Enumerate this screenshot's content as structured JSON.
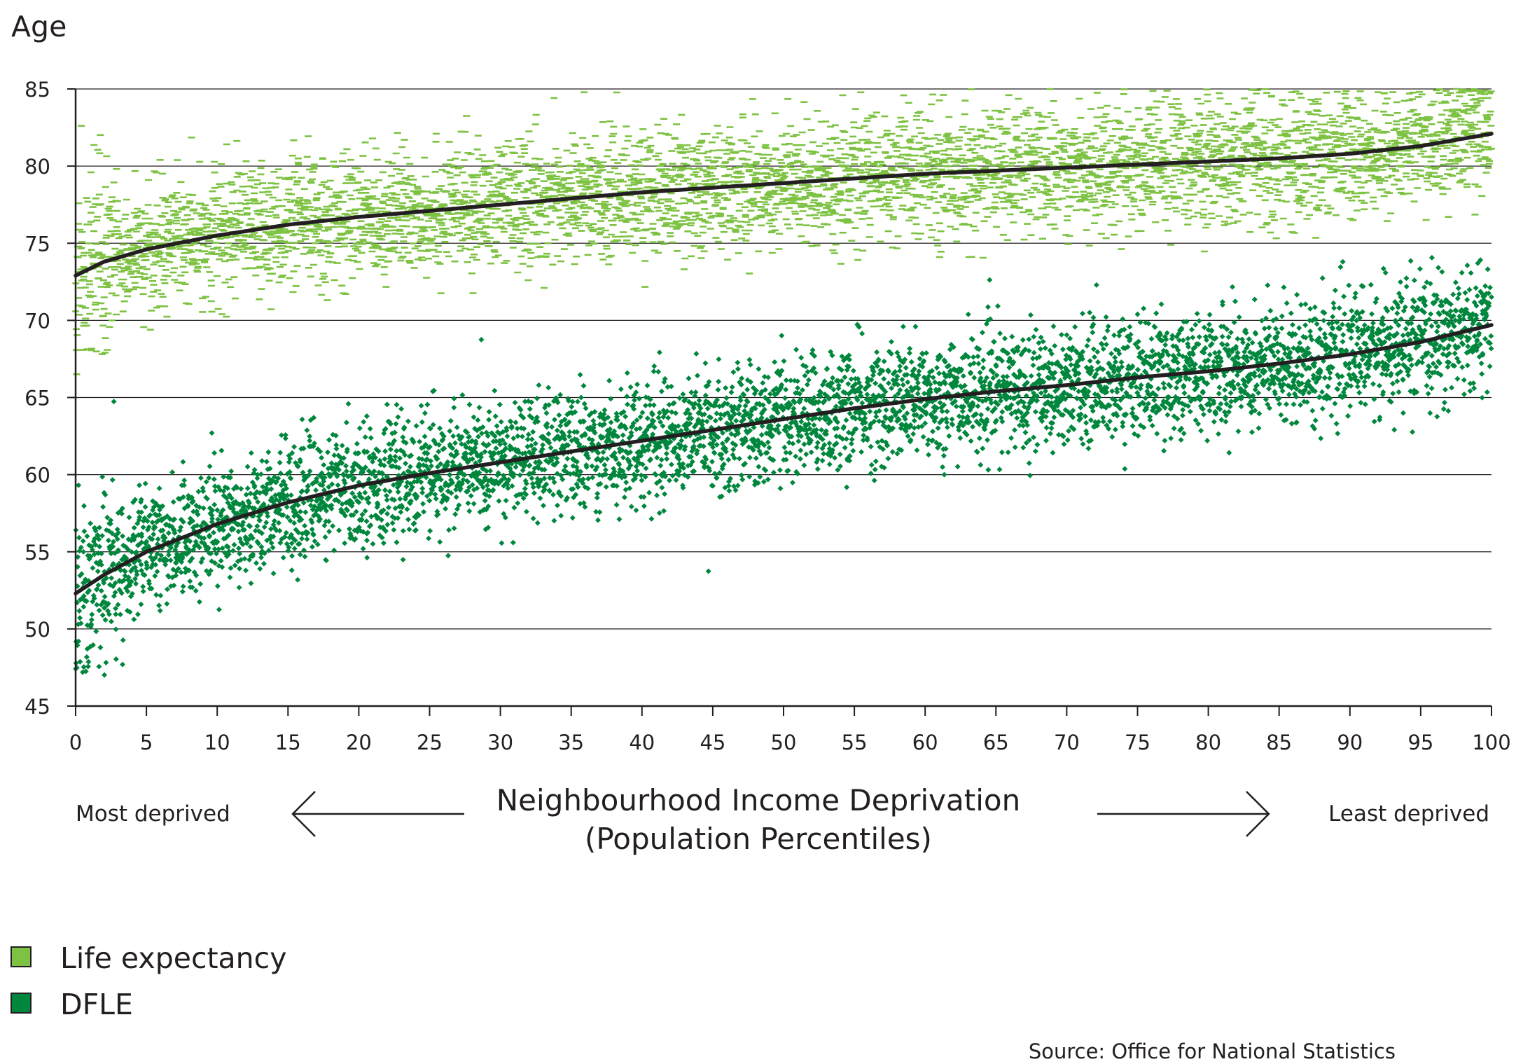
{
  "chart_data": {
    "type": "scatter",
    "ylabel": "Age",
    "xlabel_line1": "Neighbourhood Income Deprivation",
    "xlabel_line2": "(Population Percentiles)",
    "left_label": "Most deprived",
    "right_label": "Least deprived",
    "source": "Source: Office for National Statistics",
    "xlim": [
      0,
      100
    ],
    "ylim": [
      45,
      85
    ],
    "x_ticks": [
      "0",
      "5",
      "10",
      "15",
      "20",
      "25",
      "30",
      "35",
      "40",
      "45",
      "50",
      "55",
      "60",
      "65",
      "70",
      "75",
      "80",
      "85",
      "90",
      "95",
      "100"
    ],
    "y_ticks": [
      "45",
      "50",
      "55",
      "60",
      "65",
      "70",
      "75",
      "80",
      "85"
    ],
    "grid": "horizontal",
    "legend_position": "bottom-left",
    "series": [
      {
        "name": "Life expectancy",
        "color": "#7dc242",
        "marker": "dash",
        "scatter_spread": 2.0,
        "trend": {
          "x": [
            0,
            2,
            5,
            10,
            15,
            20,
            25,
            30,
            35,
            40,
            45,
            50,
            55,
            60,
            65,
            70,
            75,
            80,
            85,
            90,
            95,
            100
          ],
          "y": [
            72.9,
            73.8,
            74.6,
            75.5,
            76.2,
            76.7,
            77.1,
            77.5,
            77.9,
            78.3,
            78.6,
            78.9,
            79.2,
            79.5,
            79.7,
            79.9,
            80.1,
            80.3,
            80.5,
            80.8,
            81.3,
            82.1
          ]
        }
      },
      {
        "name": "DFLE",
        "color": "#00873d",
        "marker": "diamond",
        "scatter_spread": 1.9,
        "trend": {
          "x": [
            0,
            2,
            5,
            10,
            15,
            20,
            25,
            30,
            35,
            40,
            45,
            50,
            55,
            60,
            65,
            70,
            75,
            80,
            85,
            90,
            95,
            100
          ],
          "y": [
            52.3,
            53.5,
            55.0,
            56.8,
            58.2,
            59.3,
            60.1,
            60.8,
            61.5,
            62.2,
            62.9,
            63.6,
            64.3,
            64.9,
            65.4,
            65.8,
            66.3,
            66.7,
            67.2,
            67.8,
            68.6,
            69.7
          ]
        }
      }
    ],
    "points_per_series": 5200
  }
}
